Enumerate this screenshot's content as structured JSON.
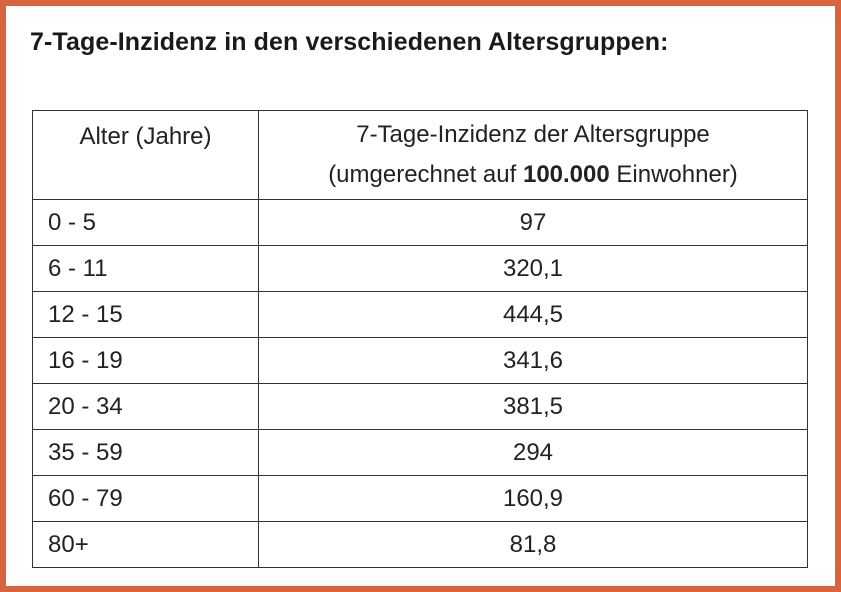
{
  "title": "7-Tage-Inzidenz in den verschiedenen Altersgruppen:",
  "table": {
    "header": {
      "age": "Alter (Jahre)",
      "incidence_line1": "7-Tage-Inzidenz der Altersgruppe",
      "incidence_line2": [
        "(umgerechnet auf",
        "100.000",
        "Einwohner)"
      ]
    },
    "rows": [
      [
        "0 - 5",
        "97"
      ],
      [
        "6 - 11",
        "320,1"
      ],
      [
        "12 - 15",
        "444,5"
      ],
      [
        "16 - 19",
        "341,6"
      ],
      [
        "20 - 34",
        "381,5"
      ],
      [
        "35 - 59",
        "294"
      ],
      [
        "60 - 79",
        "160,9"
      ],
      [
        "80+",
        "81,8"
      ]
    ]
  }
}
